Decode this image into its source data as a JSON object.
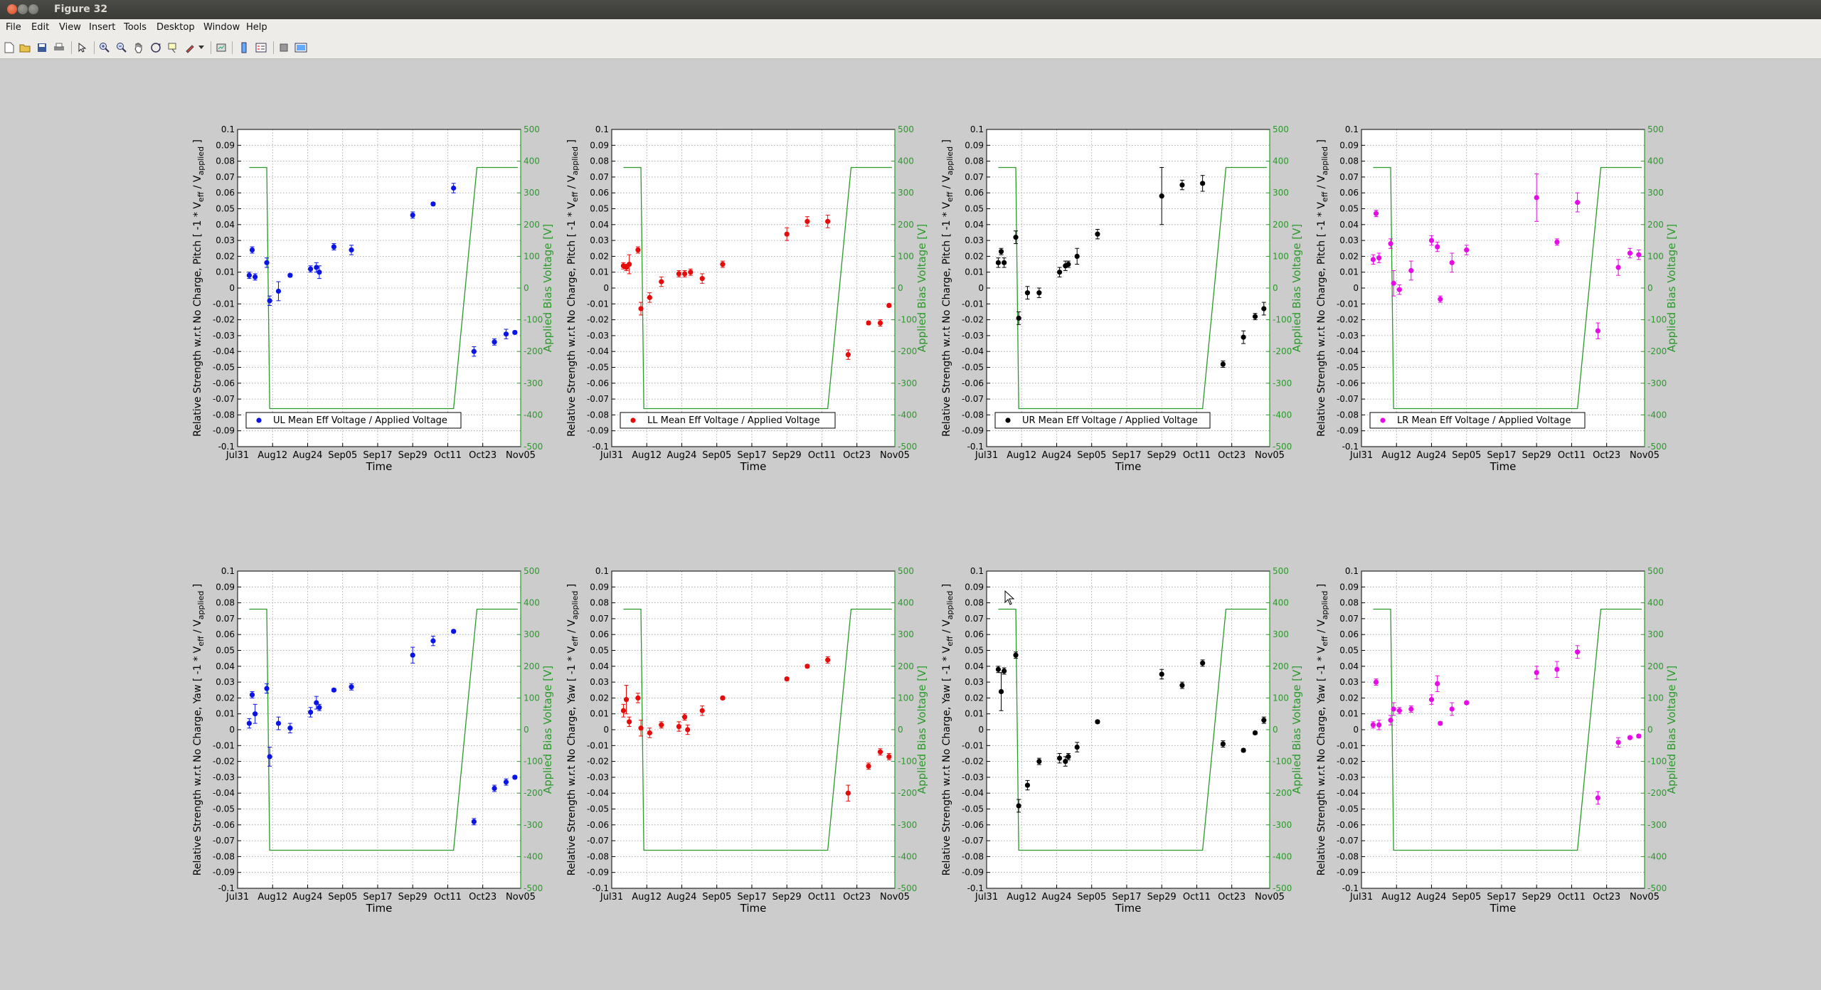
{
  "window": {
    "title": "Figure 32"
  },
  "menu": [
    "File",
    "Edit",
    "View",
    "Insert",
    "Tools",
    "Desktop",
    "Window",
    "Help"
  ],
  "toolbar_icons": [
    "new-figure-icon",
    "open-file-icon",
    "save-icon",
    "print-icon",
    "select-arrow-icon",
    "zoom-in-icon",
    "zoom-out-icon",
    "pan-hand-icon",
    "rotate-3d-icon",
    "data-cursor-icon",
    "brush-icon",
    "brush-menu-icon",
    "link-plot-icon",
    "insert-colorbar-icon",
    "insert-legend-icon",
    "hide-plot-tools-icon",
    "show-plot-tools-icon"
  ],
  "axes_common": {
    "xlabel": "Time",
    "ylabel_right": "Applied Bias Voltage [V]",
    "xticks": [
      "Jul31",
      "Aug12",
      "Aug24",
      "Sep05",
      "Sep17",
      "Sep29",
      "Oct11",
      "Oct23",
      "Nov05"
    ],
    "xtick_days": [
      0,
      12,
      24,
      36,
      48,
      60,
      72,
      84,
      97
    ],
    "xlim_days": [
      0,
      97
    ],
    "ylim": [
      -0.1,
      0.1
    ],
    "yticks": [
      "-0.1",
      "-0.09",
      "-0.08",
      "-0.07",
      "-0.06",
      "-0.05",
      "-0.04",
      "-0.03",
      "-0.02",
      "-0.01",
      "0",
      "0.01",
      "0.02",
      "0.03",
      "0.04",
      "0.05",
      "0.06",
      "0.07",
      "0.08",
      "0.09",
      "0.1"
    ],
    "y2lim": [
      -500,
      500
    ],
    "y2ticks": [
      "-500",
      "-400",
      "-300",
      "-200",
      "-100",
      "0",
      "100",
      "200",
      "300",
      "400",
      "500"
    ],
    "grid": true,
    "bias_color": "#2a9a2a"
  },
  "bias_line": [
    [
      4,
      380
    ],
    [
      10,
      380
    ],
    [
      11,
      -380
    ],
    [
      74,
      -380
    ],
    [
      82,
      380
    ],
    [
      96,
      380
    ]
  ],
  "chart_data": [
    {
      "type": "scatter",
      "ylabel": "Pitch",
      "legend": "UL Mean Eff Voltage / Applied Voltage",
      "color": "#0a14e6",
      "points": [
        [
          4,
          0.008,
          0.002
        ],
        [
          5,
          0.024,
          0.002
        ],
        [
          6,
          0.007,
          0.002
        ],
        [
          10,
          0.016,
          0.003
        ],
        [
          11,
          -0.008,
          0.003
        ],
        [
          14,
          -0.002,
          0.006
        ],
        [
          18,
          0.008,
          0.001
        ],
        [
          25,
          0.012,
          0.002
        ],
        [
          27,
          0.013,
          0.003
        ],
        [
          28,
          0.01,
          0.004
        ],
        [
          33,
          0.026,
          0.002
        ],
        [
          39,
          0.024,
          0.003
        ],
        [
          60,
          0.046,
          0.002
        ],
        [
          67,
          0.053,
          0.001
        ],
        [
          74,
          0.063,
          0.003
        ],
        [
          81,
          -0.04,
          0.003
        ],
        [
          88,
          -0.034,
          0.002
        ],
        [
          92,
          -0.029,
          0.003
        ],
        [
          95,
          -0.028,
          0.001
        ]
      ]
    },
    {
      "type": "scatter",
      "ylabel": "Pitch",
      "legend": "LL Mean Eff Voltage / Applied Voltage",
      "color": "#e60a0a",
      "points": [
        [
          4,
          0.014,
          0.002
        ],
        [
          5,
          0.013,
          0.002
        ],
        [
          6,
          0.015,
          0.006
        ],
        [
          9,
          0.024,
          0.002
        ],
        [
          10,
          -0.013,
          0.004
        ],
        [
          13,
          -0.006,
          0.003
        ],
        [
          17,
          0.004,
          0.003
        ],
        [
          23,
          0.009,
          0.002
        ],
        [
          25,
          0.009,
          0.002
        ],
        [
          27,
          0.01,
          0.002
        ],
        [
          31,
          0.006,
          0.003
        ],
        [
          38,
          0.015,
          0.002
        ],
        [
          60,
          0.034,
          0.004
        ],
        [
          67,
          0.042,
          0.003
        ],
        [
          74,
          0.042,
          0.004
        ],
        [
          81,
          -0.042,
          0.003
        ],
        [
          88,
          -0.022,
          0.001
        ],
        [
          92,
          -0.022,
          0.002
        ],
        [
          95,
          -0.011,
          0.001
        ]
      ]
    },
    {
      "type": "scatter",
      "ylabel": "Pitch",
      "legend": "UR Mean Eff Voltage / Applied Voltage",
      "color": "#000000",
      "points": [
        [
          4,
          0.016,
          0.003
        ],
        [
          5,
          0.023,
          0.002
        ],
        [
          6,
          0.016,
          0.003
        ],
        [
          10,
          0.032,
          0.004
        ],
        [
          11,
          -0.019,
          0.004
        ],
        [
          14,
          -0.003,
          0.004
        ],
        [
          18,
          -0.003,
          0.003
        ],
        [
          25,
          0.01,
          0.003
        ],
        [
          27,
          0.014,
          0.003
        ],
        [
          28,
          0.015,
          0.002
        ],
        [
          31,
          0.02,
          0.005
        ],
        [
          38,
          0.034,
          0.003
        ],
        [
          60,
          0.058,
          0.018
        ],
        [
          67,
          0.065,
          0.003
        ],
        [
          74,
          0.066,
          0.005
        ],
        [
          81,
          -0.048,
          0.002
        ],
        [
          88,
          -0.031,
          0.004
        ],
        [
          92,
          -0.018,
          0.002
        ],
        [
          95,
          -0.013,
          0.004
        ]
      ]
    },
    {
      "type": "scatter",
      "ylabel": "Pitch",
      "legend": "LR Mean Eff Voltage / Applied Voltage",
      "color": "#e60ae6",
      "points": [
        [
          4,
          0.018,
          0.003
        ],
        [
          5,
          0.047,
          0.002
        ],
        [
          6,
          0.019,
          0.003
        ],
        [
          10,
          0.028,
          0.003
        ],
        [
          11,
          0.003,
          0.008
        ],
        [
          13,
          -0.001,
          0.003
        ],
        [
          17,
          0.011,
          0.006
        ],
        [
          24,
          0.03,
          0.003
        ],
        [
          26,
          0.026,
          0.003
        ],
        [
          27,
          -0.007,
          0.002
        ],
        [
          31,
          0.016,
          0.006
        ],
        [
          36,
          0.024,
          0.003
        ],
        [
          60,
          0.057,
          0.015
        ],
        [
          67,
          0.029,
          0.002
        ],
        [
          74,
          0.054,
          0.006
        ],
        [
          81,
          -0.027,
          0.005
        ],
        [
          88,
          0.013,
          0.005
        ],
        [
          92,
          0.022,
          0.003
        ],
        [
          95,
          0.021,
          0.003
        ]
      ]
    },
    {
      "type": "scatter",
      "ylabel": "Yaw",
      "legend": "",
      "color": "#0a14e6",
      "points": [
        [
          4,
          0.004,
          0.003
        ],
        [
          5,
          0.022,
          0.002
        ],
        [
          6,
          0.01,
          0.006
        ],
        [
          10,
          0.026,
          0.003
        ],
        [
          11,
          -0.017,
          0.006
        ],
        [
          14,
          0.004,
          0.004
        ],
        [
          18,
          0.001,
          0.003
        ],
        [
          25,
          0.011,
          0.003
        ],
        [
          27,
          0.017,
          0.004
        ],
        [
          28,
          0.014,
          0.002
        ],
        [
          33,
          0.025,
          0.001
        ],
        [
          39,
          0.027,
          0.002
        ],
        [
          60,
          0.047,
          0.005
        ],
        [
          67,
          0.056,
          0.003
        ],
        [
          74,
          0.062,
          0.001
        ],
        [
          81,
          -0.058,
          0.002
        ],
        [
          88,
          -0.037,
          0.002
        ],
        [
          92,
          -0.033,
          0.002
        ],
        [
          95,
          -0.03,
          0.001
        ]
      ]
    },
    {
      "type": "scatter",
      "ylabel": "Yaw",
      "legend": "",
      "color": "#e60a0a",
      "points": [
        [
          4,
          0.012,
          0.004
        ],
        [
          5,
          0.019,
          0.009
        ],
        [
          6,
          0.005,
          0.003
        ],
        [
          9,
          0.02,
          0.003
        ],
        [
          10,
          0.001,
          0.005
        ],
        [
          13,
          -0.002,
          0.003
        ],
        [
          17,
          0.003,
          0.002
        ],
        [
          23,
          0.002,
          0.003
        ],
        [
          25,
          0.008,
          0.002
        ],
        [
          26,
          0.0,
          0.003
        ],
        [
          31,
          0.012,
          0.003
        ],
        [
          38,
          0.02,
          0.001
        ],
        [
          60,
          0.032,
          0.001
        ],
        [
          67,
          0.04,
          0.001
        ],
        [
          74,
          0.044,
          0.002
        ],
        [
          81,
          -0.04,
          0.005
        ],
        [
          88,
          -0.023,
          0.002
        ],
        [
          92,
          -0.014,
          0.002
        ],
        [
          95,
          -0.017,
          0.002
        ]
      ]
    },
    {
      "type": "scatter",
      "ylabel": "Yaw",
      "legend": "",
      "color": "#000000",
      "points": [
        [
          4,
          0.038,
          0.002
        ],
        [
          5,
          0.024,
          0.012
        ],
        [
          6,
          0.037,
          0.002
        ],
        [
          10,
          0.047,
          0.002
        ],
        [
          11,
          -0.048,
          0.004
        ],
        [
          14,
          -0.035,
          0.003
        ],
        [
          18,
          -0.02,
          0.002
        ],
        [
          25,
          -0.018,
          0.003
        ],
        [
          27,
          -0.02,
          0.003
        ],
        [
          28,
          -0.017,
          0.002
        ],
        [
          31,
          -0.011,
          0.003
        ],
        [
          38,
          0.005,
          0.001
        ],
        [
          60,
          0.035,
          0.003
        ],
        [
          67,
          0.028,
          0.002
        ],
        [
          74,
          0.042,
          0.002
        ],
        [
          81,
          -0.009,
          0.002
        ],
        [
          88,
          -0.013,
          0.001
        ],
        [
          92,
          -0.002,
          0.001
        ],
        [
          95,
          0.006,
          0.002
        ]
      ]
    },
    {
      "type": "scatter",
      "ylabel": "Yaw",
      "legend": "",
      "color": "#e60ae6",
      "points": [
        [
          4,
          0.003,
          0.002
        ],
        [
          5,
          0.03,
          0.002
        ],
        [
          6,
          0.003,
          0.003
        ],
        [
          10,
          0.006,
          0.003
        ],
        [
          11,
          0.013,
          0.004
        ],
        [
          13,
          0.012,
          0.002
        ],
        [
          17,
          0.013,
          0.002
        ],
        [
          24,
          0.019,
          0.003
        ],
        [
          26,
          0.029,
          0.005
        ],
        [
          27,
          0.004,
          0.001
        ],
        [
          31,
          0.013,
          0.004
        ],
        [
          36,
          0.017,
          0.001
        ],
        [
          60,
          0.036,
          0.004
        ],
        [
          67,
          0.038,
          0.005
        ],
        [
          74,
          0.049,
          0.004
        ],
        [
          81,
          -0.043,
          0.004
        ],
        [
          88,
          -0.008,
          0.003
        ],
        [
          92,
          -0.005,
          0.001
        ],
        [
          95,
          -0.004,
          0.001
        ]
      ]
    }
  ],
  "ylabel_template": {
    "prefix": "Relative Strength w.r.t No Charge, ",
    "suffix_a": " [ -1 * V",
    "sub1": "eff",
    "mid": " / V",
    "sub2": "applied",
    "end": " ]"
  }
}
